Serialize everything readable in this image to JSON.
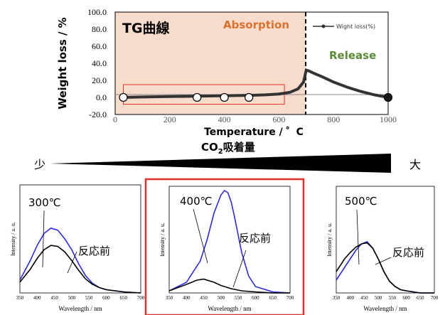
{
  "colors": {
    "absorption_fill": "#f8dccb",
    "absorption_text": "#d9722e",
    "release_text": "#5b8a3a",
    "tg_line": "#333333",
    "highlight_box": "#e0302a",
    "blue_curve": "#2b2bd6",
    "black_curve": "#000000"
  },
  "labels": {
    "tg_title": "TG曲線",
    "absorption": "Absorption",
    "release": "Release",
    "co2_prefix": "CO",
    "co2_sub": "2",
    "co2_suffix": "吸着量",
    "small": "少",
    "large": "大"
  },
  "chart_data": [
    {
      "type": "line",
      "title": "TG曲線",
      "xlabel": "Temperature / ゜C",
      "ylabel": "Weight loss / %",
      "xlim": [
        0,
        1000
      ],
      "ylim": [
        -20,
        100
      ],
      "xticks": [
        200,
        400,
        600,
        800,
        1000
      ],
      "yticks": [
        "-20.0",
        "0.0",
        "20.0",
        "40.0",
        "60.0",
        "80.0",
        "100.0"
      ],
      "legend": {
        "position": "top-right",
        "entries": [
          "Wight loss(%)"
        ]
      },
      "absorption_region": [
        0,
        700
      ],
      "release_start": 700,
      "series": [
        {
          "name": "Wight loss(%)",
          "x": [
            30,
            100,
            200,
            300,
            400,
            500,
            550,
            600,
            640,
            670,
            690,
            700,
            710,
            730,
            760,
            800,
            850,
            900,
            950,
            1000
          ],
          "y": [
            0,
            0.5,
            1,
            1.5,
            2,
            2.5,
            3,
            4,
            6,
            10,
            18,
            32,
            31,
            28,
            24,
            18,
            12,
            7,
            3,
            0
          ]
        }
      ],
      "marked_points": [
        {
          "x": 30,
          "y": 0
        },
        {
          "x": 300,
          "y": 0
        },
        {
          "x": 400,
          "y": 0
        },
        {
          "x": 490,
          "y": 0
        },
        {
          "x": 1000,
          "y": 0
        }
      ],
      "highlight_box": {
        "x": [
          30,
          620
        ],
        "y": [
          -8,
          15
        ]
      }
    },
    {
      "type": "line",
      "panel": "300℃",
      "annotation": "300℃",
      "before_label": "反応前",
      "xlabel": "Wavelength / nm",
      "ylabel": "Intensity / a. u.",
      "xlim": [
        350,
        700
      ],
      "xticks": [
        350,
        400,
        450,
        500,
        550,
        600,
        650,
        700
      ],
      "ylim": [
        0,
        1
      ],
      "series": [
        {
          "color": "blue",
          "x": [
            350,
            380,
            400,
            420,
            440,
            460,
            480,
            500,
            520,
            540,
            560,
            580,
            600,
            650,
            700
          ],
          "y": [
            0.12,
            0.3,
            0.44,
            0.55,
            0.6,
            0.58,
            0.5,
            0.4,
            0.27,
            0.16,
            0.09,
            0.05,
            0.03,
            0.01,
            0
          ]
        },
        {
          "color": "black",
          "x": [
            350,
            380,
            400,
            420,
            440,
            460,
            480,
            500,
            520,
            540,
            560,
            580,
            600,
            650,
            700
          ],
          "y": [
            0.1,
            0.22,
            0.32,
            0.4,
            0.44,
            0.43,
            0.38,
            0.3,
            0.21,
            0.13,
            0.08,
            0.05,
            0.03,
            0.01,
            0
          ]
        }
      ]
    },
    {
      "type": "line",
      "panel": "400℃",
      "annotation": "400℃",
      "before_label": "反応前",
      "highlighted": true,
      "xlabel": "Wavelength / nm",
      "ylabel": "Intensity / a. u.",
      "xlim": [
        350,
        700
      ],
      "xticks": [
        350,
        400,
        450,
        500,
        550,
        600,
        650,
        700
      ],
      "ylim": [
        0,
        1
      ],
      "series": [
        {
          "color": "blue",
          "x": [
            350,
            400,
            440,
            460,
            480,
            500,
            510,
            520,
            530,
            540,
            560,
            580,
            600,
            650,
            700
          ],
          "y": [
            0.02,
            0.1,
            0.3,
            0.5,
            0.75,
            0.92,
            0.96,
            0.94,
            0.85,
            0.7,
            0.38,
            0.16,
            0.06,
            0.01,
            0
          ]
        },
        {
          "color": "black",
          "x": [
            350,
            400,
            430,
            450,
            480,
            500,
            530,
            560,
            600,
            650,
            700
          ],
          "y": [
            0.02,
            0.08,
            0.12,
            0.13,
            0.1,
            0.07,
            0.04,
            0.02,
            0.01,
            0,
            0
          ]
        }
      ]
    },
    {
      "type": "line",
      "panel": "500℃",
      "annotation": "500℃",
      "before_label": "反応前",
      "xlabel": "Wavelength / nm",
      "ylabel": "Intensity / a. u.",
      "xlim": [
        350,
        700
      ],
      "xticks": [
        350,
        400,
        450,
        500,
        550,
        600,
        650,
        700
      ],
      "ylim": [
        0,
        1
      ],
      "series": [
        {
          "color": "blue",
          "x": [
            350,
            380,
            400,
            420,
            440,
            460,
            480,
            500,
            520,
            540,
            560,
            580,
            600,
            650,
            700
          ],
          "y": [
            0.12,
            0.24,
            0.32,
            0.4,
            0.46,
            0.48,
            0.42,
            0.32,
            0.2,
            0.11,
            0.06,
            0.03,
            0.02,
            0,
            0
          ]
        },
        {
          "color": "black",
          "x": [
            350,
            380,
            400,
            420,
            440,
            460,
            480,
            500,
            520,
            540,
            560,
            580,
            600,
            650,
            700
          ],
          "y": [
            0.2,
            0.32,
            0.38,
            0.43,
            0.46,
            0.47,
            0.42,
            0.32,
            0.2,
            0.11,
            0.06,
            0.03,
            0.02,
            0,
            0
          ]
        }
      ]
    }
  ]
}
